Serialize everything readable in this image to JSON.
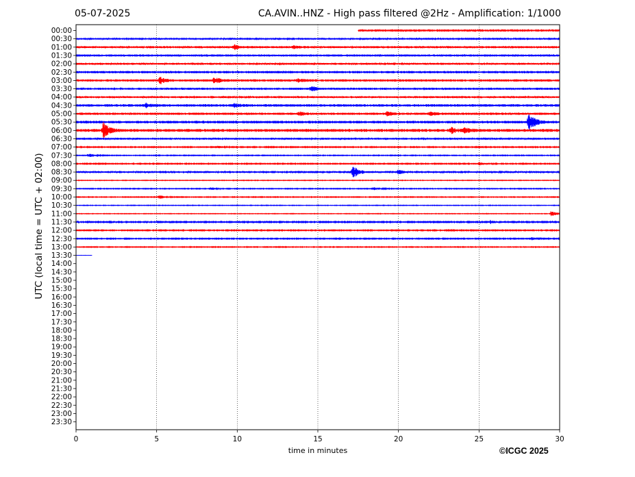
{
  "header": {
    "date": "05-07-2025",
    "title": "CA.AVIN..HNZ - High pass filtered @2Hz - Amplification: 1/1000"
  },
  "credit": "©ICGC 2025",
  "chart_data": {
    "type": "line",
    "title": "CA.AVIN..HNZ - High pass filtered @2Hz - Amplification: 1/1000",
    "xlabel": "time in minutes",
    "ylabel": "UTC (local time = UTC + 02:00)",
    "xlim": [
      0,
      30
    ],
    "xticks": [
      0,
      5,
      10,
      15,
      20,
      25,
      30
    ],
    "grid": "vertical dotted lines at each x tick",
    "row_labels": [
      "00:00",
      "00:30",
      "01:00",
      "01:30",
      "02:00",
      "02:30",
      "03:00",
      "03:30",
      "04:00",
      "04:30",
      "05:00",
      "05:30",
      "06:00",
      "06:30",
      "07:00",
      "07:30",
      "08:00",
      "08:30",
      "09:00",
      "09:30",
      "10:00",
      "10:30",
      "11:00",
      "11:30",
      "12:00",
      "12:30",
      "13:00",
      "13:30",
      "14:00",
      "14:30",
      "15:00",
      "15:30",
      "16:00",
      "16:30",
      "17:00",
      "17:30",
      "18:00",
      "18:30",
      "19:00",
      "19:30",
      "20:00",
      "20:30",
      "21:00",
      "21:30",
      "22:00",
      "22:30",
      "23:00",
      "23:30"
    ],
    "colors": {
      "even_rows": "#ff0000",
      "odd_rows": "#0000ff",
      "grid": "#000000"
    },
    "series": [
      {
        "row": "00:00",
        "x_range": [
          17.5,
          30
        ],
        "noise": 0.12,
        "events": []
      },
      {
        "row": "00:30",
        "x_range": [
          0,
          30
        ],
        "noise": 0.2,
        "events": []
      },
      {
        "row": "01:00",
        "x_range": [
          0,
          30
        ],
        "noise": 0.25,
        "events": [
          {
            "t": 9.8,
            "amp": 0.6
          },
          {
            "t": 13.5,
            "amp": 0.35
          }
        ]
      },
      {
        "row": "01:30",
        "x_range": [
          0,
          30
        ],
        "noise": 0.25,
        "events": []
      },
      {
        "row": "02:00",
        "x_range": [
          0,
          30
        ],
        "noise": 0.22,
        "events": []
      },
      {
        "row": "02:30",
        "x_range": [
          0,
          30
        ],
        "noise": 0.28,
        "events": []
      },
      {
        "row": "03:00",
        "x_range": [
          0,
          30
        ],
        "noise": 0.28,
        "events": [
          {
            "t": 5.2,
            "amp": 0.75
          },
          {
            "t": 8.6,
            "amp": 0.7
          },
          {
            "t": 13.8,
            "amp": 0.35
          }
        ]
      },
      {
        "row": "03:30",
        "x_range": [
          0,
          30
        ],
        "noise": 0.25,
        "events": [
          {
            "t": 14.6,
            "amp": 0.5
          }
        ]
      },
      {
        "row": "04:00",
        "x_range": [
          0,
          30
        ],
        "noise": 0.22,
        "events": []
      },
      {
        "row": "04:30",
        "x_range": [
          0,
          30
        ],
        "noise": 0.3,
        "events": [
          {
            "t": 4.3,
            "amp": 0.45
          },
          {
            "t": 9.8,
            "amp": 0.35
          }
        ]
      },
      {
        "row": "05:00",
        "x_range": [
          0,
          30
        ],
        "noise": 0.28,
        "events": [
          {
            "t": 13.8,
            "amp": 0.4
          },
          {
            "t": 19.3,
            "amp": 0.4
          },
          {
            "t": 21.9,
            "amp": 0.4
          }
        ]
      },
      {
        "row": "05:30",
        "x_range": [
          0,
          30
        ],
        "noise": 0.32,
        "events": [
          {
            "t": 28.1,
            "amp": 2.4
          }
        ]
      },
      {
        "row": "06:00",
        "x_range": [
          0,
          30
        ],
        "noise": 0.35,
        "events": [
          {
            "t": 1.7,
            "amp": 1.9
          },
          {
            "t": 23.3,
            "amp": 0.5
          },
          {
            "t": 24.1,
            "amp": 0.5
          }
        ]
      },
      {
        "row": "06:30",
        "x_range": [
          0,
          30
        ],
        "noise": 0.22,
        "events": []
      },
      {
        "row": "07:00",
        "x_range": [
          0,
          30
        ],
        "noise": 0.1,
        "events": [
          {
            "t": 8.9,
            "amp": 0.3
          }
        ]
      },
      {
        "row": "07:30",
        "x_range": [
          0,
          30
        ],
        "noise": 0.08,
        "events": [
          {
            "t": 0.8,
            "amp": 0.45
          }
        ]
      },
      {
        "row": "08:00",
        "x_range": [
          0,
          30
        ],
        "noise": 0.1,
        "events": [
          {
            "t": 25,
            "amp": 0.35
          }
        ]
      },
      {
        "row": "08:30",
        "x_range": [
          0,
          30
        ],
        "noise": 0.18,
        "events": [
          {
            "t": 17.2,
            "amp": 1.5
          },
          {
            "t": 20,
            "amp": 0.5
          }
        ]
      },
      {
        "row": "09:00",
        "x_range": [
          0,
          30
        ],
        "noise": 0.06,
        "events": []
      },
      {
        "row": "09:30",
        "x_range": [
          0,
          30
        ],
        "noise": 0.08,
        "events": [
          {
            "t": 8.4,
            "amp": 0.3
          },
          {
            "t": 18.5,
            "amp": 0.3
          }
        ]
      },
      {
        "row": "10:00",
        "x_range": [
          0,
          30
        ],
        "noise": 0.08,
        "events": [
          {
            "t": 5.2,
            "amp": 0.5
          }
        ]
      },
      {
        "row": "10:30",
        "x_range": [
          0,
          30
        ],
        "noise": 0.06,
        "events": []
      },
      {
        "row": "11:00",
        "x_range": [
          0,
          30
        ],
        "noise": 0.06,
        "events": [
          {
            "t": 29.5,
            "amp": 0.8
          }
        ]
      },
      {
        "row": "11:30",
        "x_range": [
          0,
          30
        ],
        "noise": 0.12,
        "events": [
          {
            "t": 25.7,
            "amp": 0.4
          }
        ]
      },
      {
        "row": "12:00",
        "x_range": [
          0,
          30
        ],
        "noise": 0.1,
        "events": []
      },
      {
        "row": "12:30",
        "x_range": [
          0,
          30
        ],
        "noise": 0.1,
        "events": [
          {
            "t": 28.2,
            "amp": 0.4
          }
        ]
      },
      {
        "row": "13:00",
        "x_range": [
          0,
          30
        ],
        "noise": 0.08,
        "events": []
      },
      {
        "row": "13:30",
        "x_range": [
          0,
          1
        ],
        "noise": 0.02,
        "events": []
      }
    ]
  }
}
